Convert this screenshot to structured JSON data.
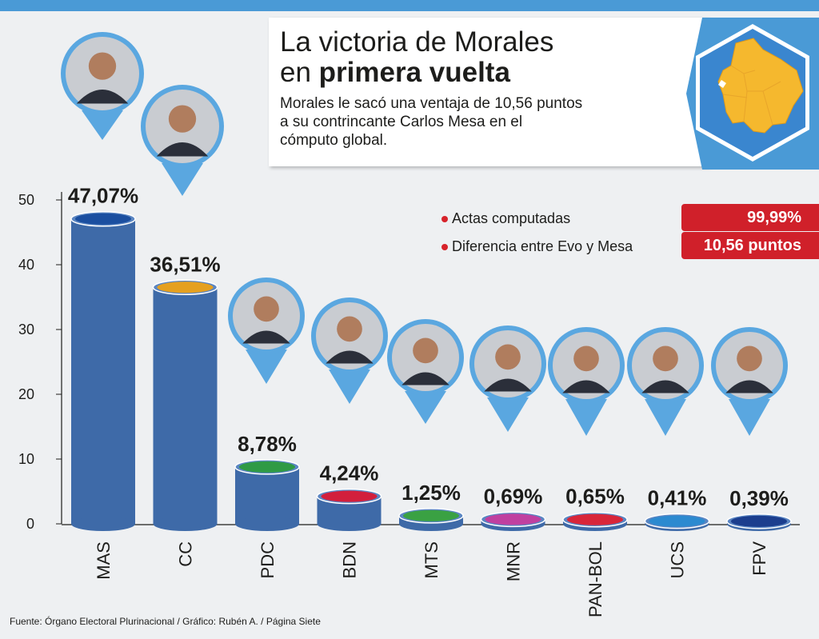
{
  "header": {
    "title_line1": "La victoria de Morales",
    "title_line2_prefix": "en ",
    "title_line2_bold": "primera vuelta",
    "subtitle": "Morales le sacó una ventaja de 10,56 puntos a su contrincante Carlos Mesa en el cómputo global."
  },
  "stats": [
    {
      "label": "Actas computadas",
      "value": "99,99%"
    },
    {
      "label": "Diferencia entre Evo y Mesa",
      "value": "10,56 puntos"
    }
  ],
  "source": "Fuente: Órgano Electoral Plurinacional / Gráfico: Rubén A. / Página Siete",
  "colors": {
    "bar": "#3e6aa8",
    "bar_top": "#5b86c2",
    "accent_blue": "#4a9ad6",
    "badge_red": "#d0202a",
    "map_yellow": "#f5b82e",
    "map_bg": "#3a86cf"
  },
  "chart_data": {
    "type": "bar",
    "categories": [
      "MAS",
      "CC",
      "PDC",
      "BDN",
      "MTS",
      "MNR",
      "PAN-BOL",
      "UCS",
      "FPV"
    ],
    "values": [
      47.07,
      36.51,
      8.78,
      4.24,
      1.25,
      0.69,
      0.65,
      0.41,
      0.39
    ],
    "value_labels": [
      "47,07%",
      "36,51%",
      "8,78%",
      "4,24%",
      "1,25%",
      "0,69%",
      "0,65%",
      "0,41%",
      "0,39%"
    ],
    "party_logo_colors": [
      "#1b4fa0",
      "#e5a020",
      "#2f9a45",
      "#d21f3c",
      "#3aa143",
      "#c040a0",
      "#d8263a",
      "#2c8ad0",
      "#1b3e8e"
    ],
    "yticks": [
      0,
      10,
      20,
      30,
      40,
      50
    ],
    "ylim": [
      0,
      50
    ],
    "grid": false,
    "legend": "none"
  }
}
